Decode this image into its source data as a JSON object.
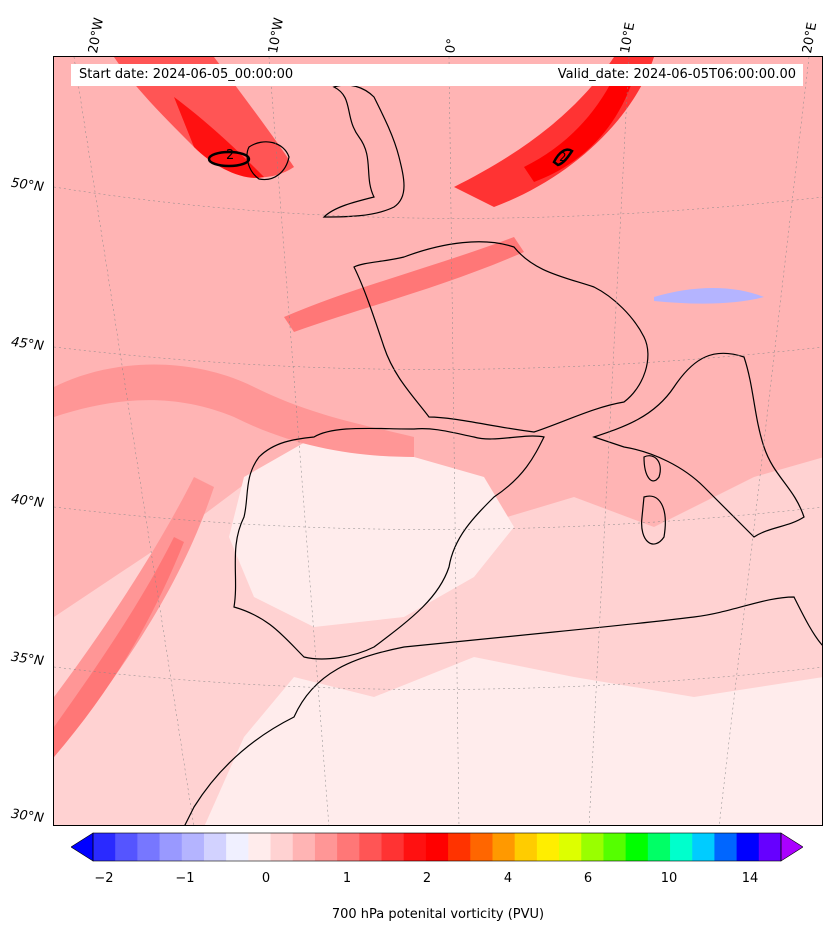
{
  "header": {
    "start_date": "Start date: 2024-06-05_00:00:00",
    "valid_date": "Valid_date: 2024-06-05T06:00:00.00"
  },
  "axes": {
    "longitude_labels": [
      "20°W",
      "10°W",
      "0°",
      "10°E",
      "20°E"
    ],
    "latitude_labels": [
      "50°N",
      "45°N",
      "40°N",
      "35°N",
      "30°N"
    ]
  },
  "map": {
    "contour_label": "2",
    "background_color": "#ffaaaa",
    "land_outline_color": "#000000"
  },
  "colorbar": {
    "label": "700 hPa potenital vorticity (PVU)",
    "tick_labels": [
      "−2",
      "−1",
      "0",
      "1",
      "2",
      "4",
      "6",
      "10",
      "14"
    ],
    "colors": [
      "#0000ff",
      "#2a2aff",
      "#5555ff",
      "#7777ff",
      "#9999ff",
      "#b4b4ff",
      "#d2d2ff",
      "#f0f0ff",
      "#ffecec",
      "#ffd2d2",
      "#ffb4b4",
      "#ff9696",
      "#ff7777",
      "#ff5555",
      "#ff3333",
      "#ff1111",
      "#ff0000",
      "#ff3300",
      "#ff6600",
      "#ff9900",
      "#ffcc00",
      "#ffee00",
      "#ddff00",
      "#99ff00",
      "#55ff00",
      "#00ff00",
      "#00ff66",
      "#00ffcc",
      "#00ccff",
      "#0066ff",
      "#0000ff",
      "#6600ff",
      "#aa00ff"
    ]
  }
}
